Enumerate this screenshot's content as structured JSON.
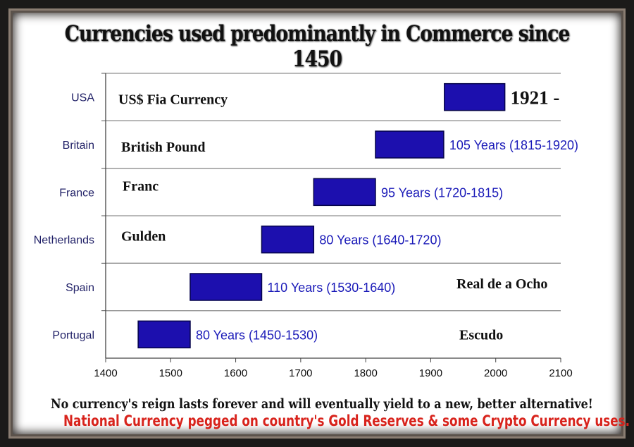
{
  "title": "Currencies used predominantly in Commerce since 1450",
  "footer": {
    "line1": "No currency's reign lasts forever and will eventually yield to a new, better alternative!",
    "line2": "National Currency pegged on country's Gold Reserves & some Crypto Currency uses."
  },
  "colors": {
    "bar": "#1c0fae",
    "bar_label": "#1a1ab8",
    "footer_red": "#d8231c"
  },
  "chart_data": {
    "type": "bar",
    "orientation": "horizontal-range",
    "xlim": [
      1400,
      2100
    ],
    "xticks": [
      1400,
      1500,
      1600,
      1700,
      1800,
      1900,
      2000,
      2100
    ],
    "categories": [
      "USA",
      "Britain",
      "France",
      "Netherlands",
      "Spain",
      "Portugal"
    ],
    "bars": [
      {
        "country": "USA",
        "currency": "US$ Fia Currency",
        "start": 1921,
        "end": 2014,
        "label": "1921 -"
      },
      {
        "country": "Britain",
        "currency": "British Pound",
        "start": 1815,
        "end": 1920,
        "label": "105 Years (1815-1920)"
      },
      {
        "country": "France",
        "currency": "Franc",
        "start": 1720,
        "end": 1815,
        "label": "95 Years (1720-1815)"
      },
      {
        "country": "Netherlands",
        "currency": "Gulden",
        "start": 1640,
        "end": 1720,
        "label": "80 Years (1640-1720)"
      },
      {
        "country": "Spain",
        "currency": "Real de a Ocho",
        "start": 1530,
        "end": 1640,
        "label": "110 Years (1530-1640)"
      },
      {
        "country": "Portugal",
        "currency": "Escudo",
        "start": 1450,
        "end": 1530,
        "label": "80 Years (1450-1530)"
      }
    ],
    "grid": true,
    "legend": false
  }
}
